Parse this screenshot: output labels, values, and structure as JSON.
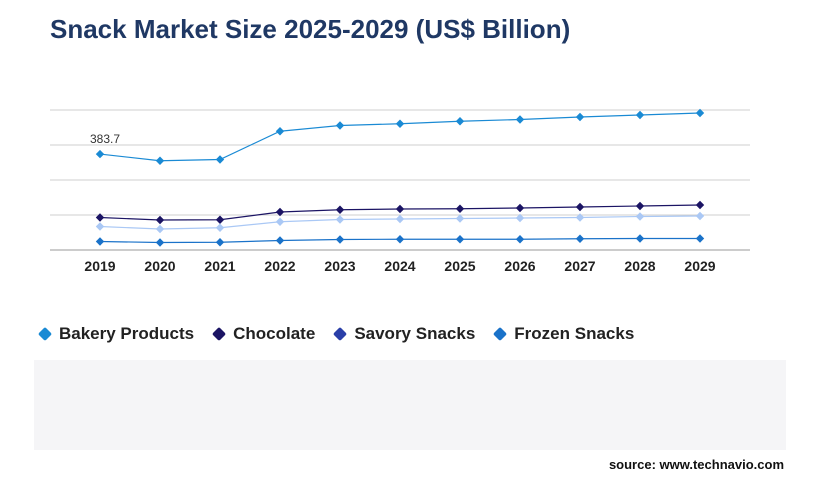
{
  "title": "Snack Market Size 2025-2029 (US$ Billion)",
  "source": "source: www.technavio.com",
  "colors": {
    "title": "#1f3864",
    "grid": "#cfcfcf",
    "axis_text": "#222222"
  },
  "chart_data": {
    "type": "line",
    "title": "Snack Market Size 2025-2029 (US$ Billion)",
    "categories": [
      "2019",
      "2020",
      "2021",
      "2022",
      "2023",
      "2024",
      "2025",
      "2026",
      "2027",
      "2028",
      "2029"
    ],
    "ylim": [
      0,
      560
    ],
    "grid": true,
    "legend_position": "bottom-left",
    "annotations": [
      {
        "category": "2019",
        "text": "383.7"
      }
    ],
    "series": [
      {
        "name": "Bakery Products",
        "color": "#1a8ad4",
        "line_color": "#1a8ad4",
        "values": [
          383.7,
          357,
          362,
          475,
          498,
          505,
          515,
          522,
          532,
          540,
          548
        ]
      },
      {
        "name": "Chocolate",
        "color": "#1b1464",
        "line_color": "#1b1464",
        "values": [
          130,
          120,
          121,
          152,
          161,
          164,
          165,
          168,
          172,
          176,
          180
        ]
      },
      {
        "name": "Savory Snacks",
        "color": "#aac8f5",
        "line_color": "#aac8f5",
        "values": [
          94,
          84,
          89,
          113,
          122,
          124,
          126,
          128,
          130,
          134,
          136
        ]
      },
      {
        "name": "Frozen Snacks",
        "color": "#1a72c9",
        "line_color": "#1a72c9",
        "values": [
          34,
          30,
          31,
          38,
          42,
          43,
          43,
          43,
          45,
          46,
          46
        ]
      }
    ],
    "legend": [
      {
        "label": "Bakery Products",
        "color": "#1a8ad4"
      },
      {
        "label": "Chocolate",
        "color": "#1b1464"
      },
      {
        "label": "Savory Snacks",
        "color": "#2a3fa8"
      },
      {
        "label": "Frozen Snacks",
        "color": "#1a72c9"
      }
    ]
  }
}
